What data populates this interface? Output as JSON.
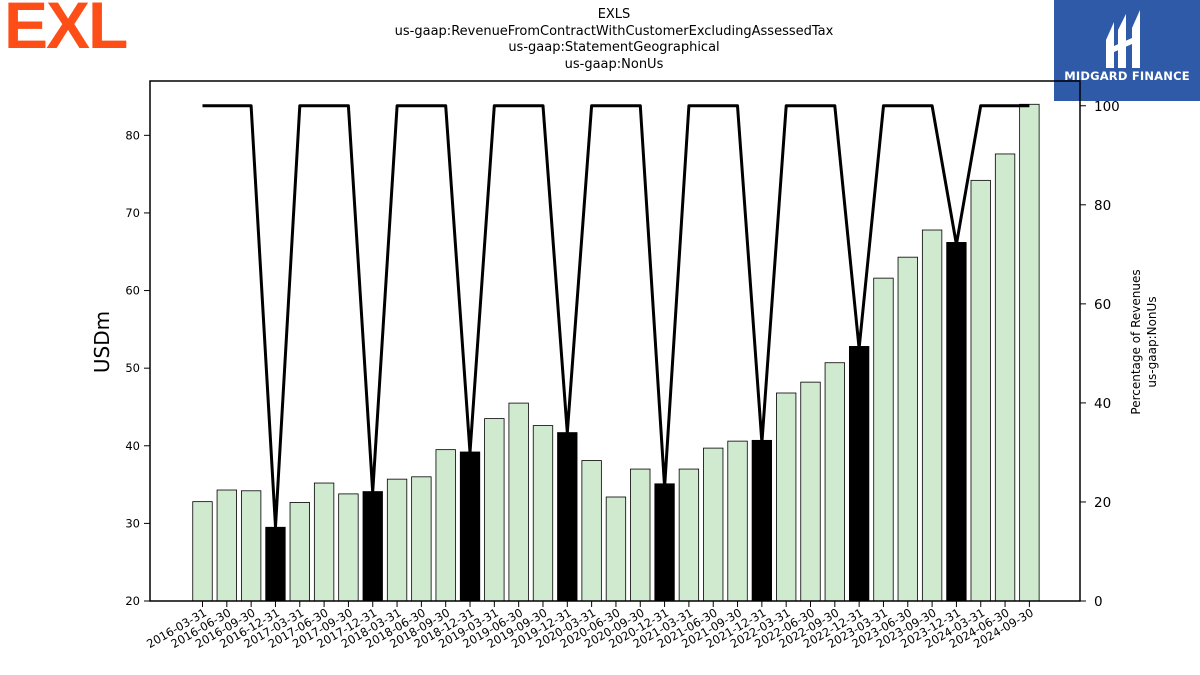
{
  "header": {
    "title_lines": [
      "EXLS",
      "us-gaap:RevenueFromContractWithCustomerExcludingAssessedTax",
      "us-gaap:StatementGeographical",
      "us-gaap:NonUs"
    ]
  },
  "logos": {
    "left_text": "EXL",
    "left_color": "#fc4e16",
    "right_text": "MIDGARD FINANCE",
    "right_bg": "#2f5aa8"
  },
  "chart_data": {
    "type": "bar",
    "ylabel": "USDm",
    "y2label_lines": [
      "Percentage of Revenues",
      "us-gaap:NonUs"
    ],
    "ylim": [
      20,
      87
    ],
    "y2lim": [
      0,
      105
    ],
    "yticks": [
      20,
      30,
      40,
      50,
      60,
      70,
      80
    ],
    "y2ticks": [
      0,
      20,
      40,
      60,
      80,
      100
    ],
    "bar_color": "#d0ead0",
    "highlight_color": "#000000",
    "line_color": "#000000",
    "categories": [
      "2016-03-31",
      "2016-06-30",
      "2016-09-30",
      "2016-12-31",
      "2017-03-31",
      "2017-06-30",
      "2017-09-30",
      "2017-12-31",
      "2018-03-31",
      "2018-06-30",
      "2018-09-30",
      "2018-12-31",
      "2019-03-31",
      "2019-06-30",
      "2019-09-30",
      "2019-12-31",
      "2020-03-31",
      "2020-06-30",
      "2020-09-30",
      "2020-12-31",
      "2021-03-31",
      "2021-06-30",
      "2021-09-30",
      "2021-12-31",
      "2022-03-31",
      "2022-06-30",
      "2022-09-30",
      "2022-12-31",
      "2023-03-31",
      "2023-06-30",
      "2023-09-30",
      "2023-12-31",
      "2024-03-31",
      "2024-06-30",
      "2024-09-30"
    ],
    "values": [
      32.8,
      34.3,
      34.2,
      29.5,
      32.7,
      35.2,
      33.8,
      34.1,
      35.7,
      36.0,
      39.5,
      39.2,
      43.5,
      45.5,
      42.6,
      41.7,
      38.1,
      33.4,
      37.0,
      35.1,
      37.0,
      39.7,
      40.6,
      40.7,
      46.8,
      48.2,
      50.7,
      52.8,
      61.6,
      64.3,
      67.8,
      66.2,
      74.2,
      77.6,
      84.0
    ],
    "highlight": [
      false,
      false,
      false,
      true,
      false,
      false,
      false,
      true,
      false,
      false,
      false,
      true,
      false,
      false,
      false,
      true,
      false,
      false,
      false,
      true,
      false,
      false,
      false,
      true,
      false,
      false,
      false,
      true,
      false,
      false,
      false,
      true,
      false,
      false,
      false
    ],
    "percentage": [
      100,
      100,
      100,
      15,
      100,
      100,
      100,
      22,
      100,
      100,
      100,
      30,
      100,
      100,
      100,
      34,
      100,
      100,
      100,
      23,
      100,
      100,
      100,
      32,
      100,
      100,
      100,
      51,
      100,
      100,
      100,
      72,
      100,
      100,
      100
    ]
  }
}
